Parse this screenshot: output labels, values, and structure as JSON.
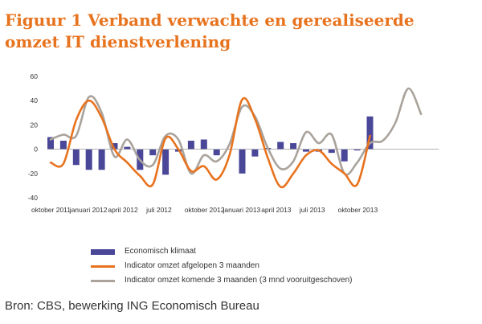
{
  "title": {
    "line1": "Figuur 1 Verband verwachte en gerealiseerde",
    "line2": "omzet IT dienstverlening"
  },
  "source": "Bron: CBS, bewerking ING Economisch Bureau",
  "chart_data": {
    "type": "bar",
    "title": "",
    "xlabel": "",
    "ylabel": "",
    "ylim": [
      -40,
      60
    ],
    "yticks": [
      -40,
      -20,
      0,
      20,
      40,
      60
    ],
    "grid": false,
    "legend_position": "bottom",
    "x_tick_labels": [
      {
        "label": "oktober 2011",
        "index": 0
      },
      {
        "label": "januari 2012",
        "index": 3
      },
      {
        "label": "april 2012",
        "index": 6
      },
      {
        "label": "juli 2012",
        "index": 9
      },
      {
        "label": "oktober 2012",
        "index": 12
      },
      {
        "label": "januari 2013",
        "index": 15
      },
      {
        "label": "april 2013",
        "index": 18
      },
      {
        "label": "juli 2013",
        "index": 21
      },
      {
        "label": "oktober 2013",
        "index": 24
      }
    ],
    "months": [
      "2011-10",
      "2011-11",
      "2011-12",
      "2012-01",
      "2012-02",
      "2012-03",
      "2012-04",
      "2012-05",
      "2012-06",
      "2012-07",
      "2012-08",
      "2012-09",
      "2012-10",
      "2012-11",
      "2012-12",
      "2013-01",
      "2013-02",
      "2013-03",
      "2013-04",
      "2013-05",
      "2013-06",
      "2013-07",
      "2013-08",
      "2013-09",
      "2013-10",
      "2013-11",
      "2013-12",
      "2014-01",
      "2014-02",
      "2014-03",
      "2014-04"
    ],
    "series": [
      {
        "name": "Economisch klimaat",
        "kind": "bar",
        "color": "#4b4798",
        "values": [
          10,
          7,
          -13,
          -17,
          -17,
          5,
          2,
          -17,
          -5,
          -21,
          -2,
          7,
          8,
          -5,
          0,
          -20,
          -6,
          1,
          6,
          5,
          -2,
          -2,
          -3,
          -10,
          -1,
          27
        ]
      },
      {
        "name": "Indicator omzet afgelopen 3 maanden",
        "kind": "line",
        "color": "#e8731f",
        "values": [
          -11,
          -12,
          24,
          40,
          26,
          0,
          -11,
          -22,
          -29,
          9,
          0,
          -18,
          -14,
          -25,
          -5,
          41,
          25,
          -7,
          -31,
          -20,
          -5,
          -1,
          -12,
          -20,
          -29,
          11
        ]
      },
      {
        "name": "Indicator omzet komende 3 maanden (3 mnd vooruitgeschoven)",
        "kind": "line",
        "color": "#aaa39c",
        "values": [
          8,
          12,
          11,
          43,
          30,
          -6,
          8,
          -9,
          -13,
          11,
          8,
          -20,
          -5,
          -10,
          4,
          35,
          27,
          1,
          -16,
          -10,
          14,
          5,
          12,
          -20,
          -11,
          5,
          7,
          22,
          50,
          29
        ]
      }
    ]
  }
}
